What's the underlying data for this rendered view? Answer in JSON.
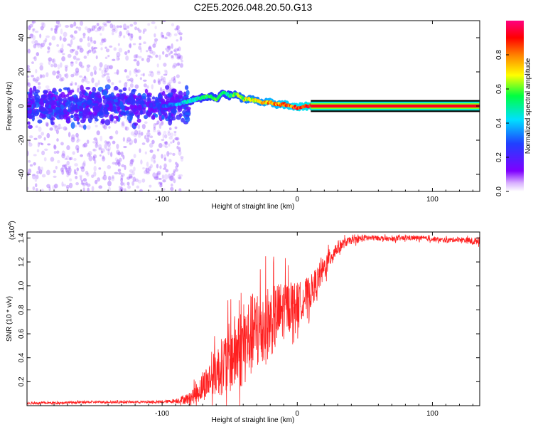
{
  "page_title": "C2E5.2026.048.20.50.G13",
  "chart_data": [
    {
      "type": "heatmap",
      "title": "C2E5.2026.048.20.50.G13",
      "xlabel": "Height of straight line (km)",
      "ylabel": "Frequency (Hz)",
      "xlim": [
        -200,
        135
      ],
      "ylim": [
        -50,
        50
      ],
      "x_ticks": [
        -100,
        0,
        100
      ],
      "y_ticks": [
        -40,
        -20,
        0,
        20,
        40
      ],
      "x_tick_labels": [
        "-100",
        "0",
        "100"
      ],
      "y_tick_labels": [
        "-40",
        "-20",
        "0",
        "20",
        "40"
      ],
      "colorbar": {
        "label": "Normalized spectral amplitude",
        "range": [
          0,
          1
        ],
        "ticks": [
          0.0,
          0.2,
          0.4,
          0.6,
          0.8
        ],
        "tick_labels": [
          "0.0",
          "0.2",
          "0.4",
          "0.6",
          "0.8"
        ],
        "colormap": [
          "#ffffff",
          "#7f00ff",
          "#2040ff",
          "#00e0ff",
          "#00ff40",
          "#ffff00",
          "#ff8000",
          "#ff0000",
          "#ff0080"
        ]
      },
      "ridge": {
        "description": "dominant frequency track",
        "x": [
          -100,
          -90,
          -80,
          -70,
          -65,
          -60,
          -55,
          -50,
          -45,
          -40,
          -35,
          -30,
          -25,
          -20,
          -15,
          -10,
          -5,
          0,
          5,
          10,
          135
        ],
        "y": [
          0,
          1,
          3,
          5,
          6,
          4,
          8,
          6,
          7,
          4,
          4,
          3,
          2,
          2,
          1,
          1,
          0,
          -1,
          0,
          0,
          0
        ],
        "amplitude": [
          0.3,
          0.4,
          0.5,
          0.55,
          0.6,
          0.6,
          0.55,
          0.6,
          0.65,
          0.7,
          0.75,
          0.75,
          0.8,
          0.85,
          0.85,
          0.9,
          0.9,
          0.95,
          0.95,
          1.0,
          1.0
        ]
      },
      "noise_region": {
        "x_range": [
          -200,
          -95
        ],
        "y_range": [
          -50,
          50
        ],
        "level": "low"
      }
    },
    {
      "type": "line",
      "xlabel": "Height of straight line (km)",
      "ylabel": "SNR (10 * v/v)",
      "y_scale_label": "(x10",
      "y_scale_exponent": "4",
      "xlim": [
        -200,
        135
      ],
      "ylim": [
        0,
        1.45
      ],
      "x_ticks": [
        -100,
        0,
        100
      ],
      "y_ticks": [
        0.2,
        0.4,
        0.6,
        0.8,
        1.0,
        1.2,
        1.4
      ],
      "x_tick_labels": [
        "-100",
        "0",
        "100"
      ],
      "y_tick_labels": [
        "0.2",
        "0.4",
        "0.6",
        "0.8",
        "1.0",
        "1.2",
        "1.4"
      ],
      "color": "#ff2020",
      "series": [
        {
          "name": "SNR",
          "x": [
            -200,
            -150,
            -100,
            -90,
            -80,
            -75,
            -70,
            -65,
            -60,
            -55,
            -50,
            -45,
            -40,
            -35,
            -30,
            -25,
            -20,
            -15,
            -10,
            -5,
            0,
            5,
            10,
            15,
            20,
            25,
            30,
            35,
            40,
            45,
            50,
            60,
            70,
            80,
            90,
            100,
            110,
            120,
            130,
            135
          ],
          "y": [
            0.02,
            0.03,
            0.03,
            0.04,
            0.06,
            0.1,
            0.16,
            0.22,
            0.28,
            0.34,
            0.4,
            0.45,
            0.5,
            0.58,
            0.62,
            0.66,
            0.7,
            0.75,
            0.8,
            0.85,
            0.85,
            0.9,
            0.95,
            1.05,
            1.15,
            1.25,
            1.32,
            1.36,
            1.38,
            1.39,
            1.4,
            1.4,
            1.39,
            1.4,
            1.4,
            1.39,
            1.38,
            1.39,
            1.37,
            1.38
          ],
          "spread": [
            0.01,
            0.01,
            0.01,
            0.02,
            0.05,
            0.08,
            0.12,
            0.16,
            0.2,
            0.25,
            0.3,
            0.33,
            0.35,
            0.35,
            0.35,
            0.35,
            0.3,
            0.28,
            0.25,
            0.2,
            0.18,
            0.15,
            0.14,
            0.12,
            0.1,
            0.08,
            0.06,
            0.04,
            0.03,
            0.03,
            0.03,
            0.02,
            0.02,
            0.02,
            0.02,
            0.02,
            0.02,
            0.02,
            0.03,
            0.03
          ]
        }
      ]
    }
  ]
}
